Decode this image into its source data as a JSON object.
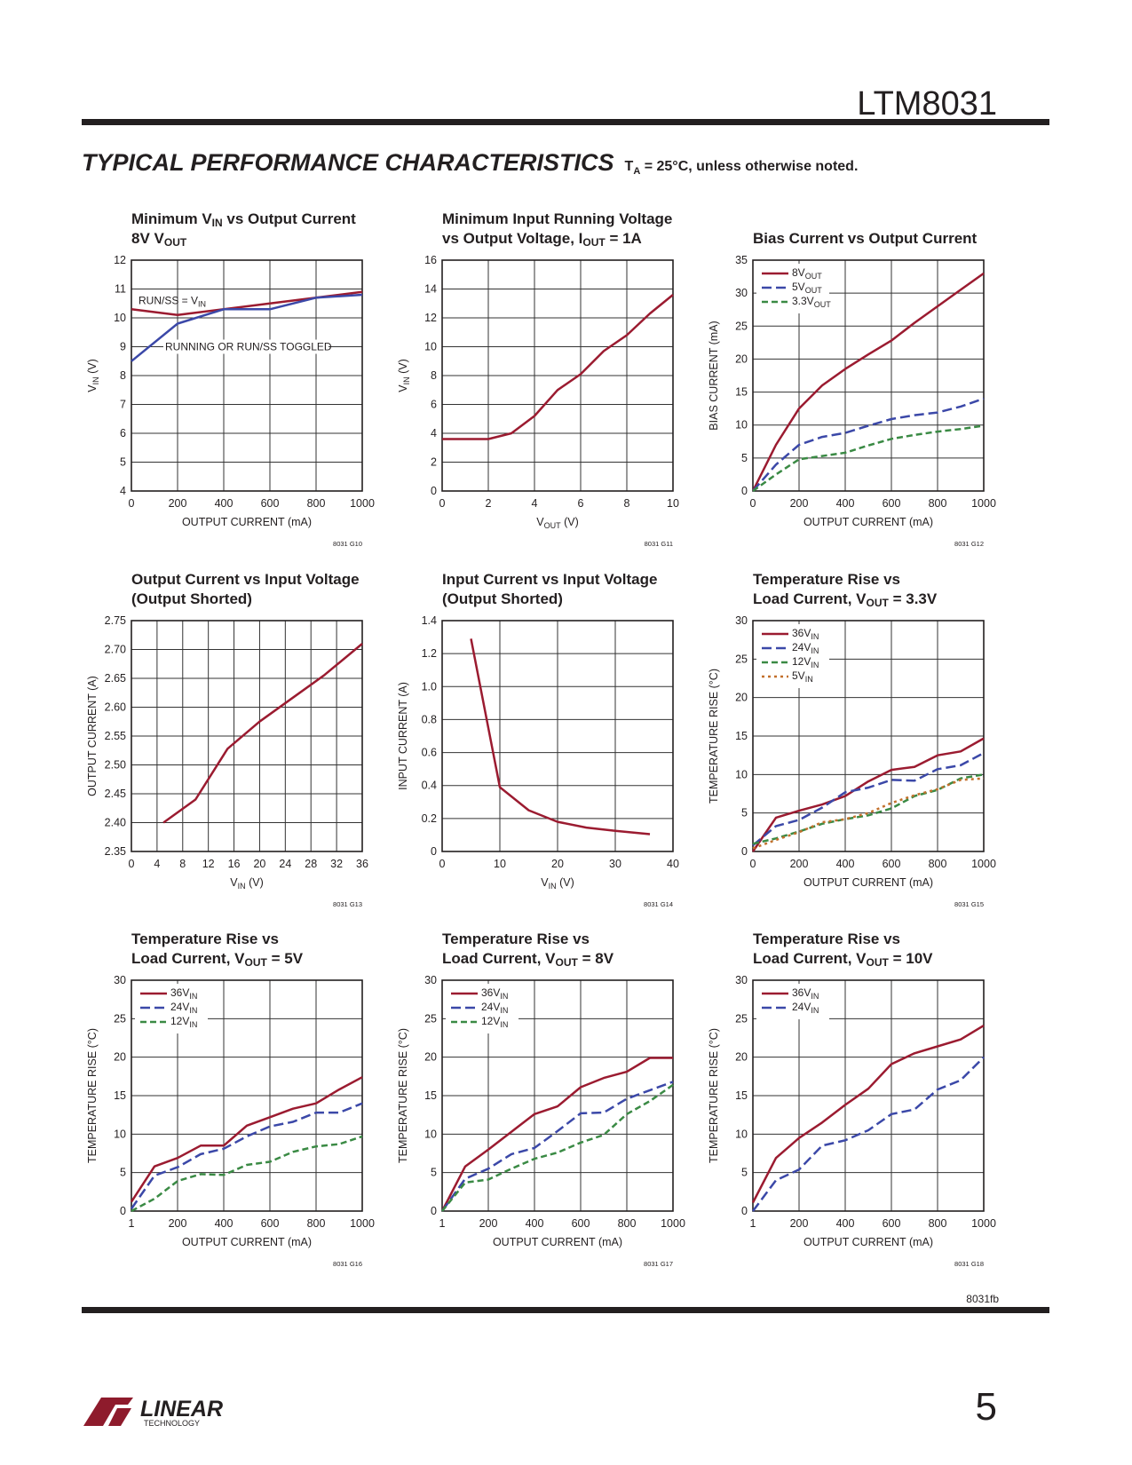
{
  "header": {
    "part_number": "LTM8031"
  },
  "section": {
    "title": "TYPICAL PERFORMANCE CHARACTERISTICS",
    "conditions_prefix": "T",
    "conditions_sub": "A",
    "conditions_suffix": " = 25°C, unless otherwise noted."
  },
  "footer": {
    "revision": "8031fb",
    "page_number": "5",
    "logo_text": "LINEAR",
    "logo_subtext": "TECHNOLOGY"
  },
  "colors": {
    "red": "#9b1b30",
    "blue": "#3b48a8",
    "green": "#3a8a44",
    "orange": "#c2702c",
    "grid": "#333333"
  },
  "chart_data": [
    {
      "type": "line",
      "title": [
        "Minimum V_{IN} vs Output Current",
        "8V V_{OUT}"
      ],
      "xlabel": "OUTPUT CURRENT (mA)",
      "ylabel": "V_{IN} (V)",
      "xlim": [
        0,
        1000
      ],
      "ylim": [
        4,
        12
      ],
      "xticks": [
        0,
        200,
        400,
        600,
        800,
        1000
      ],
      "yticks": [
        4,
        5,
        6,
        7,
        8,
        9,
        10,
        11,
        12
      ],
      "grid": true,
      "legend": "none",
      "code": "8031 G10",
      "annotations": [
        "RUN/SS = V_{IN}",
        "RUNNING OR RUN/SS TOGGLED"
      ],
      "series": [
        {
          "name": "RUN/SS = V_{IN}",
          "color": "red",
          "dash": "solid",
          "x": [
            0,
            200,
            400,
            600,
            800,
            1000
          ],
          "y": [
            10.3,
            10.1,
            10.3,
            10.5,
            10.7,
            10.9
          ]
        },
        {
          "name": "RUNNING OR RUN/SS TOGGLED",
          "color": "blue",
          "dash": "solid",
          "x": [
            0,
            200,
            400,
            600,
            800,
            1000
          ],
          "y": [
            8.5,
            9.8,
            10.3,
            10.3,
            10.7,
            10.8
          ]
        }
      ]
    },
    {
      "type": "line",
      "title": [
        "Minimum Input Running Voltage",
        "vs Output Voltage, I_{OUT} = 1A"
      ],
      "xlabel": "V_{OUT} (V)",
      "ylabel": "V_{IN} (V)",
      "xlim": [
        0,
        10
      ],
      "ylim": [
        0,
        16
      ],
      "xticks": [
        0,
        2,
        4,
        6,
        8,
        10
      ],
      "yticks": [
        0,
        2,
        4,
        6,
        8,
        10,
        12,
        14,
        16
      ],
      "grid": true,
      "legend": "none",
      "code": "8031 G11",
      "series": [
        {
          "color": "red",
          "dash": "solid",
          "x": [
            1,
            2,
            3,
            4,
            5,
            6,
            7,
            8,
            9,
            10
          ],
          "y": [
            3.6,
            3.6,
            4.0,
            5.2,
            7.0,
            8.1,
            9.7,
            10.8,
            12.3,
            13.6
          ]
        }
      ]
    },
    {
      "type": "line",
      "title": [
        "Bias Current vs Output Current"
      ],
      "xlabel": "OUTPUT CURRENT (mA)",
      "ylabel": "BIAS CURRENT (mA)",
      "xlim": [
        0,
        1000
      ],
      "ylim": [
        0,
        35
      ],
      "xticks": [
        0,
        200,
        400,
        600,
        800,
        1000
      ],
      "yticks": [
        0,
        5,
        10,
        15,
        20,
        25,
        30,
        35
      ],
      "grid": true,
      "legend": "top-left",
      "code": "8031 G12",
      "series": [
        {
          "name": "8V_{OUT}",
          "color": "red",
          "dash": "solid",
          "x": [
            0,
            100,
            200,
            300,
            400,
            500,
            600,
            700,
            800,
            900,
            1000
          ],
          "y": [
            0,
            7,
            12.5,
            16,
            18.5,
            20.7,
            22.8,
            25.5,
            28,
            30.5,
            33
          ]
        },
        {
          "name": "5V_{OUT}",
          "color": "blue",
          "dash": "long",
          "x": [
            0,
            100,
            200,
            300,
            400,
            500,
            600,
            700,
            800,
            900,
            1000
          ],
          "y": [
            0,
            4,
            7,
            8.2,
            8.8,
            9.9,
            10.9,
            11.5,
            11.9,
            12.8,
            14
          ]
        },
        {
          "name": "3.3V_{OUT}",
          "color": "green",
          "dash": "short",
          "x": [
            0,
            100,
            200,
            300,
            400,
            500,
            600,
            700,
            800,
            900,
            1000
          ],
          "y": [
            0,
            2.5,
            4.8,
            5.3,
            5.8,
            6.9,
            7.9,
            8.5,
            9,
            9.4,
            9.9
          ]
        }
      ]
    },
    {
      "type": "line",
      "title": [
        "Output Current vs Input Voltage",
        "(Output Shorted)"
      ],
      "xlabel": "V_{IN} (V)",
      "ylabel": "OUTPUT CURRENT (A)",
      "xlim": [
        0,
        36
      ],
      "ylim": [
        2.35,
        2.75
      ],
      "xticks": [
        0,
        4,
        8,
        12,
        16,
        20,
        24,
        28,
        32,
        36
      ],
      "yticks": [
        "2.35",
        "2.40",
        "2.45",
        "2.50",
        "2.55",
        "2.60",
        "2.65",
        "2.70",
        "2.75"
      ],
      "grid": true,
      "legend": "none",
      "code": "8031 G13",
      "series": [
        {
          "color": "red",
          "dash": "solid",
          "x": [
            5,
            10,
            15,
            20,
            25,
            30,
            36
          ],
          "y": [
            2.4,
            2.44,
            2.528,
            2.575,
            2.615,
            2.655,
            2.71
          ]
        }
      ]
    },
    {
      "type": "line",
      "title": [
        "Input Current vs Input Voltage",
        "(Output Shorted)"
      ],
      "xlabel": "V_{IN} (V)",
      "ylabel": "INPUT CURRENT (A)",
      "xlim": [
        0,
        40
      ],
      "ylim": [
        0,
        1.4
      ],
      "xticks": [
        0,
        10,
        20,
        30,
        40
      ],
      "yticks": [
        "0",
        "0.2",
        "0.4",
        "0.6",
        "0.8",
        "1.0",
        "1.2",
        "1.4"
      ],
      "grid": true,
      "legend": "none",
      "code": "8031 G14",
      "series": [
        {
          "color": "red",
          "dash": "solid",
          "x": [
            5,
            10,
            15,
            20,
            25,
            30,
            36
          ],
          "y": [
            1.29,
            0.39,
            0.25,
            0.18,
            0.145,
            0.125,
            0.105
          ]
        }
      ]
    },
    {
      "type": "line",
      "title": [
        "Temperature Rise vs",
        "Load Current, V_{OUT} = 3.3V"
      ],
      "xlabel": "OUTPUT CURRENT (mA)",
      "ylabel": "TEMPERATURE RISE (°C)",
      "xlim": [
        0,
        1000
      ],
      "ylim": [
        0,
        30
      ],
      "xticks": [
        0,
        200,
        400,
        600,
        800,
        1000
      ],
      "yticks": [
        0,
        5,
        10,
        15,
        20,
        25,
        30
      ],
      "grid": true,
      "legend": "top-left",
      "code": "8031 G15",
      "series": [
        {
          "name": "36V_{IN}",
          "color": "red",
          "dash": "solid",
          "x": [
            0,
            100,
            200,
            300,
            400,
            500,
            600,
            700,
            800,
            900,
            1000
          ],
          "y": [
            0,
            4.4,
            5.3,
            6.1,
            7.2,
            9.1,
            10.6,
            11,
            12.5,
            13,
            14.7
          ]
        },
        {
          "name": "24V_{IN}",
          "color": "blue",
          "dash": "long",
          "x": [
            0,
            100,
            200,
            300,
            400,
            500,
            600,
            700,
            800,
            900,
            1000
          ],
          "y": [
            0.8,
            3.3,
            4.1,
            5.7,
            7.7,
            8.3,
            9.3,
            9.2,
            10.7,
            11.2,
            12.8
          ]
        },
        {
          "name": "12V_{IN}",
          "color": "green",
          "dash": "short",
          "x": [
            0,
            100,
            200,
            300,
            400,
            500,
            600,
            700,
            800,
            900,
            1000
          ],
          "y": [
            1,
            1.7,
            2.6,
            3.6,
            4.2,
            4.7,
            5.6,
            7.2,
            8,
            9.5,
            10
          ]
        },
        {
          "name": "5V_{IN}",
          "color": "orange",
          "dash": "dot",
          "x": [
            0,
            100,
            200,
            300,
            400,
            500,
            600,
            700,
            800,
            900,
            1000
          ],
          "y": [
            0.4,
            1.5,
            2.5,
            3.8,
            4.2,
            5,
            6.3,
            7.3,
            8.1,
            9.3,
            9.5
          ]
        }
      ]
    },
    {
      "type": "line",
      "title": [
        "Temperature Rise vs",
        "Load Current, V_{OUT} = 5V"
      ],
      "xlabel": "OUTPUT CURRENT (mA)",
      "ylabel": "TEMPERATURE RISE (°C)",
      "xlim": [
        0,
        1000
      ],
      "ylim": [
        0,
        30
      ],
      "xticks": [
        1,
        200,
        400,
        600,
        800,
        1000
      ],
      "yticks": [
        0,
        5,
        10,
        15,
        20,
        25,
        30
      ],
      "grid": true,
      "legend": "top-left",
      "code": "8031 G16",
      "series": [
        {
          "name": "36V_{IN}",
          "color": "red",
          "dash": "solid",
          "x": [
            1,
            100,
            200,
            300,
            400,
            500,
            600,
            700,
            800,
            900,
            1000
          ],
          "y": [
            1.2,
            5.8,
            6.9,
            8.5,
            8.5,
            11.1,
            12.2,
            13.3,
            14,
            15.8,
            17.4
          ]
        },
        {
          "name": "24V_{IN}",
          "color": "blue",
          "dash": "long",
          "x": [
            1,
            100,
            200,
            300,
            400,
            500,
            600,
            700,
            800,
            900,
            1000
          ],
          "y": [
            0.3,
            4.6,
            5.7,
            7.4,
            8.1,
            9.7,
            11,
            11.6,
            12.8,
            12.8,
            14
          ]
        },
        {
          "name": "12V_{IN}",
          "color": "green",
          "dash": "short",
          "x": [
            1,
            100,
            200,
            300,
            400,
            500,
            600,
            700,
            800,
            900,
            1000
          ],
          "y": [
            0,
            1.6,
            3.9,
            4.8,
            4.7,
            6,
            6.4,
            7.7,
            8.4,
            8.7,
            9.7
          ]
        }
      ]
    },
    {
      "type": "line",
      "title": [
        "Temperature Rise vs",
        "Load Current, V_{OUT} = 8V"
      ],
      "xlabel": "OUTPUT CURRENT (mA)",
      "ylabel": "TEMPERATURE RISE (°C)",
      "xlim": [
        0,
        1000
      ],
      "ylim": [
        0,
        30
      ],
      "xticks": [
        1,
        200,
        400,
        600,
        800,
        1000
      ],
      "yticks": [
        0,
        5,
        10,
        15,
        20,
        25,
        30
      ],
      "grid": true,
      "legend": "top-left",
      "code": "8031 G17",
      "series": [
        {
          "name": "36V_{IN}",
          "color": "red",
          "dash": "solid",
          "x": [
            1,
            100,
            200,
            300,
            400,
            500,
            600,
            700,
            800,
            900,
            1000
          ],
          "y": [
            0,
            5.8,
            8,
            10.3,
            12.6,
            13.6,
            16.1,
            17.3,
            18.1,
            19.9,
            19.9
          ]
        },
        {
          "name": "24V_{IN}",
          "color": "blue",
          "dash": "long",
          "x": [
            1,
            100,
            200,
            300,
            400,
            500,
            600,
            700,
            800,
            900,
            1000
          ],
          "y": [
            0,
            4.2,
            5.5,
            7.4,
            8.2,
            10.4,
            12.7,
            12.8,
            14.6,
            15.7,
            16.8
          ]
        },
        {
          "name": "12V_{IN}",
          "color": "green",
          "dash": "short",
          "x": [
            1,
            100,
            200,
            300,
            400,
            500,
            600,
            700,
            800,
            900,
            1000
          ],
          "y": [
            0,
            3.7,
            4.1,
            5.5,
            6.8,
            7.6,
            8.9,
            9.9,
            12.6,
            14.3,
            16.4
          ]
        }
      ]
    },
    {
      "type": "line",
      "title": [
        "Temperature Rise vs",
        "Load Current, V_{OUT} = 10V"
      ],
      "xlabel": "OUTPUT CURRENT (mA)",
      "ylabel": "TEMPERATURE RISE (°C)",
      "xlim": [
        0,
        1000
      ],
      "ylim": [
        0,
        30
      ],
      "xticks": [
        1,
        200,
        400,
        600,
        800,
        1000
      ],
      "yticks": [
        0,
        5,
        10,
        15,
        20,
        25,
        30
      ],
      "grid": true,
      "legend": "top-left",
      "code": "8031 G18",
      "series": [
        {
          "name": "36V_{IN}",
          "color": "red",
          "dash": "solid",
          "x": [
            1,
            100,
            200,
            300,
            400,
            500,
            600,
            700,
            800,
            900,
            1000
          ],
          "y": [
            1.1,
            6.9,
            9.5,
            11.5,
            13.8,
            15.9,
            19.1,
            20.5,
            21.4,
            22.3,
            24.1
          ]
        },
        {
          "name": "24V_{IN}",
          "color": "blue",
          "dash": "long",
          "x": [
            1,
            100,
            200,
            300,
            400,
            500,
            600,
            700,
            800,
            900,
            1000
          ],
          "y": [
            0,
            4,
            5.4,
            8.5,
            9.2,
            10.5,
            12.6,
            13.2,
            15.8,
            17,
            20
          ]
        }
      ]
    }
  ]
}
